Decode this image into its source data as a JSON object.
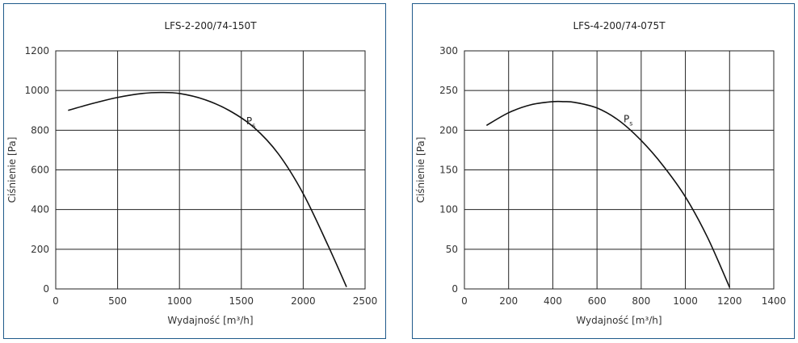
{
  "chart_data": [
    {
      "type": "line",
      "title": "LFS-2-200/74-150T",
      "xlabel": "Wydajność [m³/h]",
      "ylabel": "Ciśnienie [Pa]",
      "xlim": [
        0,
        2500
      ],
      "ylim": [
        0,
        1200
      ],
      "x_ticks": [
        0,
        500,
        1000,
        1500,
        2000,
        2500
      ],
      "y_ticks": [
        0,
        200,
        400,
        600,
        800,
        1000,
        1200
      ],
      "grid": true,
      "series": [
        {
          "name": "Ps",
          "x": [
            100,
            300,
            500,
            700,
            850,
            1000,
            1200,
            1400,
            1600,
            1800,
            2000,
            2200,
            2350
          ],
          "y": [
            900,
            935,
            965,
            985,
            990,
            985,
            955,
            900,
            815,
            680,
            480,
            220,
            10
          ]
        }
      ],
      "annotation": {
        "label": "P",
        "sub": "s",
        "x": 1540,
        "y": 830
      }
    },
    {
      "type": "line",
      "title": "LFS-4-200/74-075T",
      "xlabel": "Wydajność [m³/h]",
      "ylabel": "Ciśnienie [Pa]",
      "xlim": [
        0,
        1400
      ],
      "ylim": [
        0,
        300
      ],
      "x_ticks": [
        0,
        200,
        400,
        600,
        800,
        1000,
        1200,
        1400
      ],
      "y_ticks": [
        0,
        50,
        100,
        150,
        200,
        250,
        300
      ],
      "grid": true,
      "series": [
        {
          "name": "Ps",
          "x": [
            100,
            200,
            300,
            400,
            450,
            500,
            600,
            700,
            800,
            900,
            1000,
            1100,
            1200
          ],
          "y": [
            206,
            222,
            232,
            236,
            236,
            235,
            228,
            212,
            187,
            155,
            116,
            65,
            2
          ]
        }
      ],
      "annotation": {
        "label": "P",
        "sub": "s",
        "x": 720,
        "y": 210
      }
    }
  ]
}
